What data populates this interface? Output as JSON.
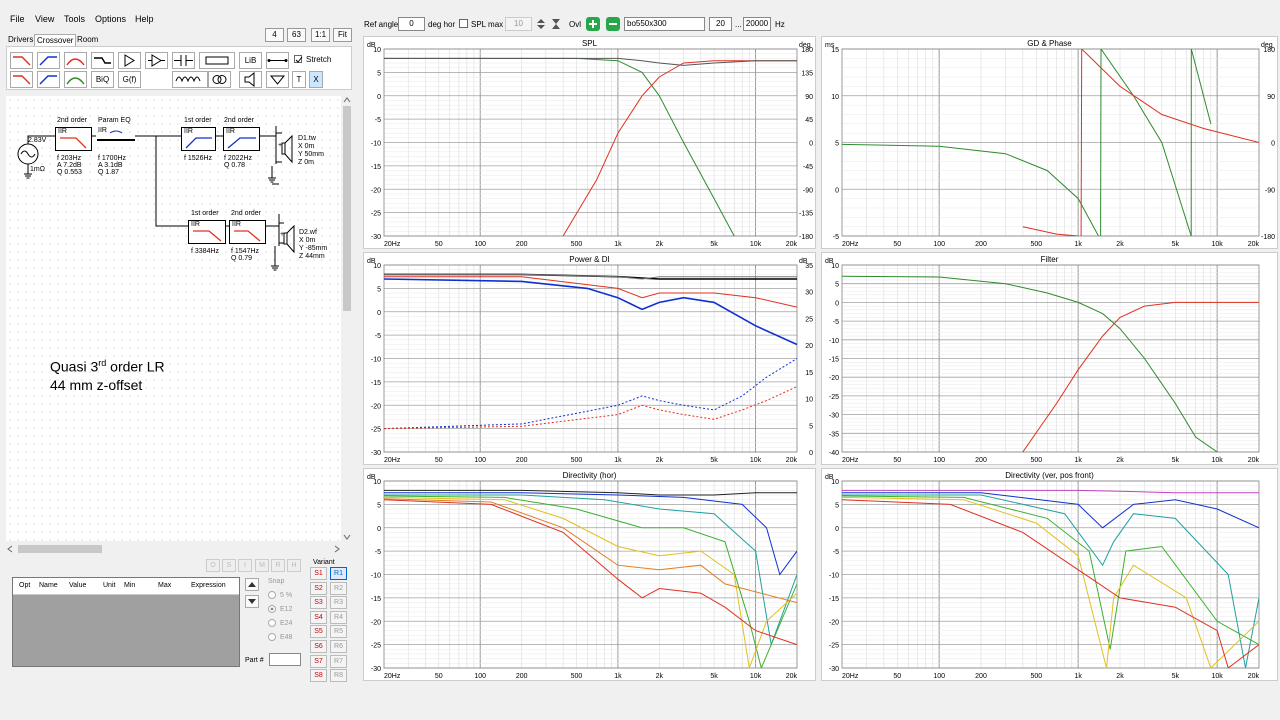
{
  "menu": [
    "File",
    "View",
    "Tools",
    "Options",
    "Help"
  ],
  "zoom_buttons": [
    "4",
    "63",
    "1:1",
    "Fit"
  ],
  "tabs": [
    "Drivers",
    "Crossover",
    "Room"
  ],
  "tool_labels": {
    "lib": "LiB",
    "biq": "BiQ",
    "gf": "G(f)",
    "t": "T",
    "x": "X"
  },
  "stretch_label": "Stretch",
  "schematic": {
    "source_v": "2.83V",
    "source_r": "1mΩ",
    "b1": {
      "title": "2nd order",
      "type": "IIR",
      "p1": "f   203Hz",
      "p2": "A  7.2dB",
      "p3": "Q  0.553"
    },
    "b2": {
      "title": "Param EQ",
      "type": "IIR",
      "p1": "f   1700Hz",
      "p2": "A  3.1dB",
      "p3": "Q  1.87"
    },
    "b3": {
      "title": "1st order",
      "type": "IIR",
      "p1": "f   1526Hz"
    },
    "b4": {
      "title": "2nd order",
      "type": "IIR",
      "p1": "f   2022Hz",
      "p2": "Q  0.78"
    },
    "d1": {
      "name": "D1.tw",
      "x": "X  0m",
      "y": "Y  50mm",
      "z": "Z  0m"
    },
    "b5": {
      "title": "1st order",
      "type": "IIR",
      "p1": "f   3384Hz"
    },
    "b6": {
      "title": "2nd order",
      "type": "IIR",
      "p1": "f   1547Hz",
      "p2": "Q  0.79"
    },
    "d2": {
      "name": "D2.wf",
      "x": "X  0m",
      "y": "Y  -85mm",
      "z": "Z  44mm"
    },
    "note1a": "Quasi 3",
    "note1sup": "rd",
    "note1b": " order LR",
    "note2": "44 mm z-offset"
  },
  "state_buttons": [
    "O",
    "S",
    "I",
    "M",
    "R",
    "H"
  ],
  "grid_headers": [
    "Opt",
    "Name",
    "Value",
    "Unit",
    "Min",
    "Max",
    "Expression"
  ],
  "snap": {
    "label": "Snap",
    "options": [
      "5 %",
      "E12",
      "E24",
      "E48"
    ]
  },
  "part_label": "Part #",
  "variant": {
    "label": "Variant",
    "s": [
      "S1",
      "S2",
      "S3",
      "S4",
      "S5",
      "S6",
      "S7",
      "S8"
    ],
    "r": [
      "R1",
      "R2",
      "R3",
      "R4",
      "R5",
      "R6",
      "R7",
      "R8"
    ]
  },
  "topbar": {
    "ref_angle_label": "Ref angle",
    "ref_angle": "0",
    "deg_hor": "deg hor",
    "spl_max_label": "SPL max",
    "spl_max": "10",
    "ovl_label": "Ovl",
    "ovl_name": "bo550x300",
    "f_min": "20",
    "dots": "...",
    "f_max": "20000",
    "hz": "Hz"
  },
  "panels": {
    "spl": {
      "title": "SPL",
      "yl": "dB",
      "yr": "deg"
    },
    "gd": {
      "title": "GD & Phase",
      "yl": "ms",
      "yr": "deg"
    },
    "power": {
      "title": "Power & DI",
      "yl": "dB",
      "yr": "dB"
    },
    "filter": {
      "title": "Filter",
      "yl": "dB"
    },
    "dirh": {
      "title": "Directivity (hor)",
      "yl": "dB"
    },
    "dirv": {
      "title": "Directivity (ver, pos front)",
      "yl": "dB"
    }
  },
  "freq_ticks": [
    "20Hz",
    "50",
    "100",
    "200",
    "500",
    "1k",
    "2k",
    "5k",
    "10k",
    "20k"
  ],
  "freq_values": [
    20,
    50,
    100,
    200,
    500,
    1000,
    2000,
    5000,
    10000,
    20000
  ],
  "chart_data": [
    {
      "type": "line",
      "title": "SPL",
      "ylabel": "dB",
      "y2label": "deg",
      "ylim": [
        -30,
        10
      ],
      "y2lim": [
        -180,
        180
      ],
      "xscale": "log",
      "xlim": [
        20,
        20000
      ],
      "y_ticks": [
        "10",
        "5",
        "0",
        "-5",
        "-10",
        "-15",
        "-20",
        "-25",
        "-30"
      ],
      "y2_ticks": [
        "180",
        "135",
        "90",
        "45",
        "0",
        "-45",
        "-90",
        "-135",
        "-180"
      ],
      "series": [
        {
          "color": "#2e8b2e",
          "x": [
            20,
            100,
            500,
            1000,
            1500,
            2000,
            3000,
            5000,
            7000
          ],
          "y": [
            8,
            8,
            8,
            7.5,
            5,
            0,
            -10,
            -22,
            -30
          ]
        },
        {
          "color": "#e03020",
          "x": [
            400,
            700,
            1000,
            1500,
            2000,
            3000,
            5000,
            10000,
            20000
          ],
          "y": [
            -30,
            -18,
            -8,
            0,
            4,
            7,
            7.5,
            7.5,
            7.5
          ]
        },
        {
          "color": "#555555",
          "x": [
            20,
            100,
            500,
            1000,
            1500,
            2000,
            3000,
            5000,
            10000,
            20000
          ],
          "y": [
            8,
            8,
            8,
            8,
            7.5,
            7,
            6.5,
            7,
            7.5,
            7.5
          ]
        }
      ]
    },
    {
      "type": "line",
      "title": "GD & Phase",
      "ylabel": "ms",
      "y2label": "deg",
      "ylim": [
        -5,
        15
      ],
      "y2lim": [
        -180,
        180
      ],
      "xscale": "log",
      "xlim": [
        20,
        20000
      ],
      "y_ticks": [
        "15",
        "10",
        "5",
        "0",
        "-5"
      ],
      "y2_ticks": [
        "180",
        "90",
        "0",
        "-90",
        "-180"
      ],
      "series": [
        {
          "color": "#2e8b2e",
          "x": [
            20,
            100,
            300,
            600,
            1000,
            1400
          ],
          "y": [
            4.8,
            4.6,
            3.8,
            2,
            -1,
            -5
          ]
        },
        {
          "color": "#2e8b2e",
          "x": [
            1450,
            1460,
            2500,
            4000,
            6500
          ],
          "y": [
            -5,
            15,
            10,
            5,
            -5
          ]
        },
        {
          "color": "#2e8b2e",
          "x": [
            6500,
            6520,
            9000
          ],
          "y": [
            -5,
            15,
            7
          ]
        },
        {
          "color": "#e03020",
          "x": [
            400,
            700,
            1000
          ],
          "y": [
            -4,
            -4.8,
            -5
          ]
        },
        {
          "color": "#e03020",
          "x": [
            1050,
            1060,
            2000,
            4000,
            8000,
            20000
          ],
          "y": [
            -5,
            15,
            11,
            8,
            6.5,
            5
          ]
        }
      ]
    },
    {
      "type": "line",
      "title": "Power & DI",
      "ylabel": "dB",
      "y2label": "dB",
      "ylim": [
        -30,
        10
      ],
      "y2lim": [
        0,
        35
      ],
      "xscale": "log",
      "xlim": [
        20,
        20000
      ],
      "y_ticks": [
        "10",
        "5",
        "0",
        "-5",
        "-10",
        "-15",
        "-20",
        "-25",
        "-30"
      ],
      "y2_ticks": [
        "35",
        "30",
        "25",
        "20",
        "15",
        "10",
        "5",
        "0"
      ],
      "series": [
        {
          "color": "#000000",
          "x": [
            20,
            200,
            1000,
            2000,
            5000,
            10000,
            20000
          ],
          "y": [
            8,
            8,
            7.5,
            7,
            7,
            7,
            7
          ]
        },
        {
          "color": "#777777",
          "x": [
            20,
            200,
            1000,
            1500,
            2000,
            5000,
            20000
          ],
          "y": [
            8,
            8,
            7.5,
            7,
            7.5,
            7.5,
            7.5
          ]
        },
        {
          "color": "#e03020",
          "x": [
            20,
            200,
            1000,
            1500,
            2000,
            5000,
            10000,
            20000
          ],
          "y": [
            7.5,
            7.5,
            5,
            3,
            4,
            4,
            3,
            1
          ]
        },
        {
          "color": "#1030d0",
          "x": [
            20,
            200,
            600,
            1000,
            1500,
            2000,
            3000,
            5000,
            10000,
            20000
          ],
          "y": [
            7,
            6.5,
            5,
            3,
            0.5,
            2,
            3,
            2,
            -3,
            -7
          ]
        },
        {
          "color": "#1030d0",
          "x": [
            20,
            200,
            1000,
            1500,
            2000,
            3000,
            5000,
            8000,
            12000,
            20000
          ],
          "y": [
            -25,
            -24,
            -20,
            -18,
            -19,
            -20,
            -21,
            -18,
            -14,
            -10
          ]
        },
        {
          "color": "#e03020",
          "x": [
            20,
            200,
            1000,
            1500,
            2000,
            3000,
            5000,
            8000,
            12000,
            20000
          ],
          "y": [
            -25,
            -24.5,
            -22,
            -20,
            -21,
            -22,
            -23,
            -21,
            -19,
            -16
          ]
        }
      ]
    },
    {
      "type": "line",
      "title": "Filter",
      "ylabel": "dB",
      "ylim": [
        -40,
        10
      ],
      "xscale": "log",
      "xlim": [
        20,
        20000
      ],
      "y_ticks": [
        "10",
        "5",
        "0",
        "-5",
        "-10",
        "-15",
        "-20",
        "-25",
        "-30",
        "-35",
        "-40"
      ],
      "series": [
        {
          "color": "#2e8b2e",
          "x": [
            20,
            100,
            300,
            600,
            1000,
            1500,
            2000,
            3000,
            5000,
            7000,
            10000
          ],
          "y": [
            7,
            6.8,
            5,
            2.5,
            0,
            -3,
            -7,
            -15,
            -27,
            -36,
            -40
          ]
        },
        {
          "color": "#e03020",
          "x": [
            400,
            700,
            1000,
            1500,
            2000,
            3000,
            5000,
            10000,
            20000
          ],
          "y": [
            -40,
            -27,
            -18,
            -9,
            -4,
            -1,
            0,
            0,
            0
          ]
        }
      ]
    },
    {
      "type": "line",
      "title": "Directivity (hor)",
      "ylabel": "dB",
      "ylim": [
        -30,
        10
      ],
      "xscale": "log",
      "xlim": [
        20,
        20000
      ],
      "y_ticks": [
        "10",
        "5",
        "0",
        "-5",
        "-10",
        "-15",
        "-20",
        "-25",
        "-30"
      ],
      "series": [
        {
          "color": "#222222",
          "x": [
            20,
            200,
            1000,
            2000,
            5000,
            10000,
            20000
          ],
          "y": [
            8,
            8,
            7.5,
            7,
            7,
            7.5,
            7.5
          ]
        },
        {
          "color": "#1030d0",
          "x": [
            20,
            200,
            1000,
            3000,
            8000,
            12000,
            15000,
            20000
          ],
          "y": [
            7.5,
            7.5,
            7,
            6.5,
            5,
            0,
            -10,
            -5
          ]
        },
        {
          "color": "#20a0a0",
          "x": [
            20,
            200,
            800,
            2000,
            5000,
            10000,
            13000,
            20000
          ],
          "y": [
            7,
            7,
            6,
            4,
            3,
            -5,
            -25,
            -10
          ]
        },
        {
          "color": "#3cb030",
          "x": [
            20,
            150,
            500,
            1500,
            3000,
            6000,
            9000,
            11000,
            20000
          ],
          "y": [
            6.8,
            6.5,
            4,
            0,
            0,
            -3,
            -20,
            -30,
            -12
          ]
        },
        {
          "color": "#e0c020",
          "x": [
            20,
            150,
            400,
            1000,
            2000,
            4000,
            7000,
            9000,
            12000,
            20000
          ],
          "y": [
            6.5,
            6,
            2,
            -4,
            -6,
            -5,
            -10,
            -30,
            -20,
            -14
          ]
        },
        {
          "color": "#e08020",
          "x": [
            20,
            120,
            400,
            1000,
            2000,
            4000,
            6000,
            20000
          ],
          "y": [
            6.2,
            5.5,
            0,
            -8,
            -9,
            -8,
            -12,
            -16
          ]
        },
        {
          "color": "#e03020",
          "x": [
            20,
            120,
            400,
            1000,
            1500,
            2000,
            4000,
            6000,
            10000,
            20000
          ],
          "y": [
            6,
            5,
            -1,
            -11,
            -15,
            -13,
            -14,
            -17,
            -22,
            -25
          ]
        }
      ]
    },
    {
      "type": "line",
      "title": "Directivity (ver, pos front)",
      "ylabel": "dB",
      "ylim": [
        -30,
        10
      ],
      "xscale": "log",
      "xlim": [
        20,
        20000
      ],
      "y_ticks": [
        "10",
        "5",
        "0",
        "-5",
        "-10",
        "-15",
        "-20",
        "-25",
        "-30"
      ],
      "series": [
        {
          "color": "#c040c0",
          "x": [
            20,
            200,
            1000,
            2000,
            5000,
            10000,
            20000
          ],
          "y": [
            8,
            8,
            8,
            7.8,
            7.5,
            7.5,
            7.5
          ]
        },
        {
          "color": "#1030d0",
          "x": [
            20,
            200,
            1000,
            1500,
            2500,
            5000,
            10000,
            20000
          ],
          "y": [
            7.5,
            7.5,
            5,
            0,
            5,
            6,
            4,
            0
          ]
        },
        {
          "color": "#20a0a0",
          "x": [
            20,
            200,
            800,
            1500,
            1800,
            2500,
            5000,
            12000,
            16000,
            20000
          ],
          "y": [
            7,
            7,
            3,
            -8,
            -3,
            3,
            2,
            -10,
            -30,
            -15
          ]
        },
        {
          "color": "#3cb030",
          "x": [
            20,
            150,
            600,
            1200,
            1700,
            2200,
            4000,
            10000,
            20000
          ],
          "y": [
            6.8,
            6.5,
            2,
            -5,
            -26,
            -5,
            -4,
            -20,
            -25
          ]
        },
        {
          "color": "#e0c020",
          "x": [
            20,
            150,
            500,
            1000,
            1600,
            1800,
            2500,
            6000,
            9000,
            20000
          ],
          "y": [
            6.5,
            6,
            1,
            -6,
            -30,
            -15,
            -8,
            -15,
            -30,
            -20
          ]
        },
        {
          "color": "#e03020",
          "x": [
            20,
            120,
            400,
            1000,
            2000,
            5000,
            10000,
            12000,
            20000
          ],
          "y": [
            6,
            5,
            -1,
            -9,
            -15,
            -17,
            -22,
            -30,
            -25
          ]
        }
      ]
    }
  ]
}
